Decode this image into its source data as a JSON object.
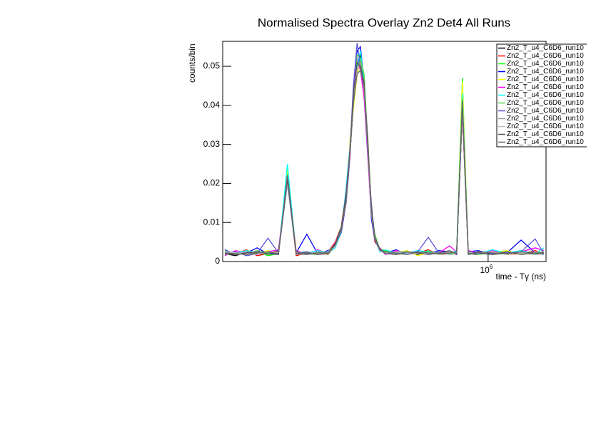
{
  "chart_data": {
    "type": "line",
    "title": "Normalised Spectra Overlay Zn2 Det4 All Runs",
    "x_label": "time - Tγ (ns)",
    "y_label": "counts/bin",
    "log_x": true,
    "xlim": [
      419000,
      1209000
    ],
    "xticks": [
      {
        "value": 1000000,
        "label": "10",
        "exponent": "6"
      }
    ],
    "ylim": [
      0,
      0.0564
    ],
    "yticks": [
      0,
      0.01,
      0.02,
      0.03,
      0.04,
      0.05
    ],
    "legend": "top-right",
    "x": [
      422000,
      437000,
      453000,
      469000,
      486000,
      503000,
      518000,
      533000,
      552000,
      572000,
      592000,
      606000,
      618000,
      628000,
      636000,
      643000,
      651000,
      658000,
      666000,
      674000,
      682000,
      690000,
      701000,
      714000,
      740000,
      766000,
      794000,
      822000,
      851000,
      881000,
      902000,
      919000,
      937000,
      968000,
      1014000,
      1063000,
      1114000,
      1167000,
      1200000
    ],
    "series": [
      {
        "name": "Zn2_T_u4_C6D6_run10",
        "color": "#000000",
        "values": [
          0.002,
          0.0015,
          0.0025,
          0.002,
          0.0018,
          0.0022,
          0.022,
          0.002,
          0.0018,
          0.0025,
          0.002,
          0.004,
          0.008,
          0.016,
          0.028,
          0.04,
          0.05,
          0.053,
          0.045,
          0.03,
          0.013,
          0.006,
          0.003,
          0.0025,
          0.002,
          0.0022,
          0.0018,
          0.0025,
          0.002,
          0.0022,
          0.002,
          0.04,
          0.002,
          0.0018,
          0.0022,
          0.002,
          0.0025,
          0.002,
          0.0022
        ]
      },
      {
        "name": "Zn2_T_u4_C6D6_run10",
        "color": "#ff0000",
        "values": [
          0.0025,
          0.002,
          0.003,
          0.0015,
          0.002,
          0.0028,
          0.021,
          0.0015,
          0.0022,
          0.002,
          0.0025,
          0.005,
          0.009,
          0.018,
          0.03,
          0.042,
          0.051,
          0.05,
          0.043,
          0.028,
          0.012,
          0.005,
          0.0035,
          0.002,
          0.0025,
          0.002,
          0.0022,
          0.003,
          0.0018,
          0.002,
          0.0025,
          0.038,
          0.0022,
          0.002,
          0.0025,
          0.0018,
          0.002,
          0.0028,
          0.002
        ]
      },
      {
        "name": "Zn2_T_u4_C6D6_run10",
        "color": "#00ff00",
        "values": [
          0.0018,
          0.0022,
          0.002,
          0.0025,
          0.0015,
          0.002,
          0.023,
          0.0025,
          0.002,
          0.0018,
          0.0022,
          0.0045,
          0.0085,
          0.017,
          0.029,
          0.041,
          0.049,
          0.052,
          0.047,
          0.031,
          0.014,
          0.0065,
          0.0032,
          0.0028,
          0.0018,
          0.0025,
          0.002,
          0.0022,
          0.0025,
          0.0018,
          0.0022,
          0.047,
          0.0018,
          0.0022,
          0.002,
          0.0025,
          0.0022,
          0.0018,
          0.0025
        ]
      },
      {
        "name": "Zn2_T_u4_C6D6_run10",
        "color": "#0000ff",
        "values": [
          0.003,
          0.0018,
          0.0022,
          0.0035,
          0.002,
          0.0025,
          0.02,
          0.0022,
          0.007,
          0.002,
          0.0028,
          0.0038,
          0.0075,
          0.015,
          0.027,
          0.043,
          0.054,
          0.055,
          0.046,
          0.029,
          0.011,
          0.0055,
          0.0028,
          0.0022,
          0.003,
          0.0018,
          0.0025,
          0.002,
          0.0028,
          0.0025,
          0.0018,
          0.039,
          0.0025,
          0.0028,
          0.0018,
          0.0022,
          0.0055,
          0.0022,
          0.0018
        ]
      },
      {
        "name": "Zn2_T_u4_C6D6_run10",
        "color": "#ffff00",
        "values": [
          0.0022,
          0.0025,
          0.0018,
          0.002,
          0.0028,
          0.0018,
          0.024,
          0.0018,
          0.0025,
          0.0022,
          0.0018,
          0.0042,
          0.0082,
          0.016,
          0.031,
          0.039,
          0.048,
          0.051,
          0.044,
          0.032,
          0.013,
          0.006,
          0.003,
          0.0025,
          0.0022,
          0.0028,
          0.0015,
          0.0022,
          0.002,
          0.0025,
          0.0022,
          0.046,
          0.002,
          0.0025,
          0.0022,
          0.0028,
          0.0018,
          0.0025,
          0.002
        ]
      },
      {
        "name": "Zn2_T_u4_C6D6_run10",
        "color": "#ff00ff",
        "values": [
          0.0015,
          0.0028,
          0.0022,
          0.0018,
          0.0025,
          0.003,
          0.022,
          0.0028,
          0.0018,
          0.003,
          0.002,
          0.0048,
          0.0088,
          0.017,
          0.027,
          0.044,
          0.052,
          0.049,
          0.042,
          0.027,
          0.012,
          0.0058,
          0.0035,
          0.0018,
          0.0028,
          0.0022,
          0.0025,
          0.0018,
          0.0022,
          0.004,
          0.0025,
          0.041,
          0.0028,
          0.0022,
          0.0028,
          0.002,
          0.0025,
          0.0035,
          0.0028
        ]
      },
      {
        "name": "Zn2_T_u4_C6D6_run10",
        "color": "#00ffff",
        "values": [
          0.002,
          0.0022,
          0.0028,
          0.0022,
          0.002,
          0.0018,
          0.025,
          0.002,
          0.0022,
          0.0028,
          0.0022,
          0.0035,
          0.0078,
          0.019,
          0.03,
          0.041,
          0.05,
          0.054,
          0.046,
          0.029,
          0.014,
          0.0062,
          0.0025,
          0.003,
          0.0022,
          0.002,
          0.0028,
          0.0025,
          0.0022,
          0.002,
          0.0028,
          0.043,
          0.0022,
          0.002,
          0.003,
          0.0022,
          0.0028,
          0.002,
          0.0035
        ]
      },
      {
        "name": "Zn2_T_u4_C6D6_run10",
        "color": "#59d454",
        "values": [
          0.0028,
          0.0018,
          0.002,
          0.0028,
          0.0022,
          0.0025,
          0.021,
          0.0025,
          0.002,
          0.0022,
          0.0025,
          0.0044,
          0.009,
          0.016,
          0.028,
          0.04,
          0.053,
          0.052,
          0.048,
          0.03,
          0.013,
          0.007,
          0.0032,
          0.002,
          0.0025,
          0.0025,
          0.002,
          0.0028,
          0.0018,
          0.0022,
          0.002,
          0.042,
          0.0025,
          0.0018,
          0.0022,
          0.0025,
          0.002,
          0.0022,
          0.0025
        ]
      },
      {
        "name": "Zn2_T_u4_C6D6_run10",
        "color": "#5954d9",
        "values": [
          0.0022,
          0.0025,
          0.0015,
          0.002,
          0.006,
          0.0022,
          0.022,
          0.0022,
          0.0025,
          0.0018,
          0.0022,
          0.004,
          0.008,
          0.018,
          0.029,
          0.045,
          0.056,
          0.05,
          0.044,
          0.028,
          0.015,
          0.0055,
          0.003,
          0.0022,
          0.0018,
          0.0022,
          0.0025,
          0.0062,
          0.0022,
          0.0025,
          0.0022,
          0.039,
          0.002,
          0.0025,
          0.002,
          0.0022,
          0.0025,
          0.0058,
          0.002
        ]
      },
      {
        "name": "Zn2_T_u4_C6D6_run10",
        "color": "#999999",
        "values": [
          0.0018,
          0.002,
          0.0025,
          0.0022,
          0.0018,
          0.002,
          0.021,
          0.0018,
          0.002,
          0.0025,
          0.0018,
          0.0042,
          0.0082,
          0.015,
          0.028,
          0.04,
          0.049,
          0.051,
          0.044,
          0.029,
          0.012,
          0.006,
          0.0028,
          0.0025,
          0.002,
          0.0018,
          0.0022,
          0.002,
          0.0025,
          0.0018,
          0.002,
          0.039,
          0.0018,
          0.0022,
          0.0018,
          0.002,
          0.0022,
          0.0018,
          0.002
        ]
      },
      {
        "name": "Zn2_T_u4_C6D6_run10",
        "color": "#bbbbbb",
        "values": [
          0.0025,
          0.0022,
          0.002,
          0.0018,
          0.0025,
          0.0022,
          0.02,
          0.0022,
          0.0018,
          0.002,
          0.0025,
          0.0038,
          0.0085,
          0.016,
          0.03,
          0.042,
          0.05,
          0.049,
          0.045,
          0.031,
          0.013,
          0.0058,
          0.003,
          0.0022,
          0.0025,
          0.0022,
          0.002,
          0.0022,
          0.0018,
          0.0025,
          0.0022,
          0.04,
          0.0022,
          0.002,
          0.0025,
          0.0018,
          0.0022,
          0.0025,
          0.0018
        ]
      },
      {
        "name": "Zn2_T_u4_C6D6_run10",
        "color": "#555555",
        "values": [
          0.002,
          0.0018,
          0.0022,
          0.0025,
          0.002,
          0.0018,
          0.021,
          0.002,
          0.0022,
          0.0018,
          0.002,
          0.0046,
          0.0088,
          0.017,
          0.029,
          0.043,
          0.051,
          0.05,
          0.046,
          0.03,
          0.014,
          0.0062,
          0.0032,
          0.002,
          0.0018,
          0.0025,
          0.0022,
          0.0018,
          0.0022,
          0.0028,
          0.002,
          0.041,
          0.002,
          0.0022,
          0.0018,
          0.0025,
          0.0018,
          0.0022,
          0.002
        ]
      },
      {
        "name": "Zn2_T_u4_C6D6_run10",
        "color": "#666666",
        "values": [
          0.0022,
          0.002,
          0.0018,
          0.0022,
          0.0025,
          0.002,
          0.022,
          0.0025,
          0.0018,
          0.0022,
          0.0022,
          0.0042,
          0.008,
          0.016,
          0.028,
          0.041,
          0.048,
          0.049,
          0.045,
          0.032,
          0.013,
          0.006,
          0.003,
          0.0025,
          0.0022,
          0.0018,
          0.0025,
          0.0022,
          0.002,
          0.0022,
          0.0025,
          0.04,
          0.0018,
          0.0025,
          0.0022,
          0.002,
          0.0025,
          0.0022,
          0.0022
        ]
      }
    ]
  }
}
